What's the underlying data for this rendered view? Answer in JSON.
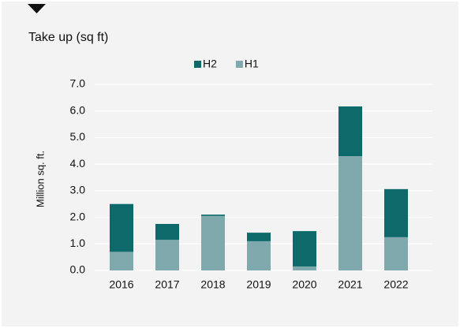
{
  "chart_data": {
    "type": "stacked_bar",
    "title": "Take up (sq ft)",
    "ylabel": "Million sq. ft.",
    "categories": [
      "2016",
      "2017",
      "2018",
      "2019",
      "2020",
      "2021",
      "2022"
    ],
    "series": [
      {
        "name": "H2",
        "color": "#0e6a6a",
        "values": [
          1.8,
          0.6,
          0.05,
          0.32,
          1.33,
          1.87,
          1.81
        ]
      },
      {
        "name": "H1",
        "color": "#80a9ae",
        "values": [
          0.7,
          1.15,
          2.05,
          1.1,
          0.15,
          4.3,
          1.25
        ]
      }
    ],
    "ylim": [
      0,
      7
    ],
    "yticks": [
      {
        "value": 0,
        "label": "0.0"
      },
      {
        "value": 1,
        "label": "1.0"
      },
      {
        "value": 2,
        "label": "2.0"
      },
      {
        "value": 3,
        "label": "3.0"
      },
      {
        "value": 4,
        "label": "4.0"
      },
      {
        "value": 5,
        "label": "5.0"
      },
      {
        "value": 6,
        "label": "6.0"
      },
      {
        "value": 7,
        "label": "7.0"
      }
    ],
    "grid": true,
    "legend": "top"
  }
}
